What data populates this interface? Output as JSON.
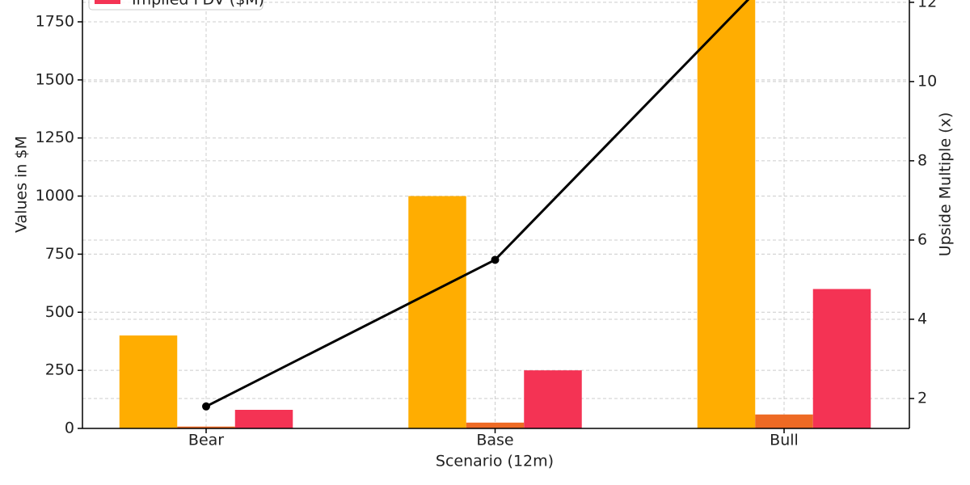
{
  "chart_data": {
    "type": "bar",
    "x_label": "Scenario (12m)",
    "y_label": "Values in $M",
    "y2_label": "Upside Multiple (x)",
    "categories": [
      "Bear",
      "Base",
      "Bull"
    ],
    "series": [
      {
        "color": "#ffad01",
        "values": [
          400,
          1000,
          2000
        ]
      },
      {
        "color": "#ee6a24",
        "values": [
          8,
          25,
          60
        ]
      },
      {
        "name": "Implied FDV ($M)",
        "color": "#f43354",
        "values": [
          80,
          250,
          600
        ]
      },
      {
        "type": "line",
        "axis": "y2",
        "color": "#000000",
        "values": [
          1.8,
          5.5,
          13
        ]
      }
    ],
    "ylim": [
      0,
      2100
    ],
    "yticks": [
      0,
      250,
      500,
      750,
      1000,
      1250,
      1500,
      1750
    ],
    "y2lim": [
      1.245,
      13.56
    ],
    "y2ticks": [
      2,
      4,
      6,
      8,
      10,
      12
    ],
    "grid": true,
    "legend": "upper left"
  }
}
